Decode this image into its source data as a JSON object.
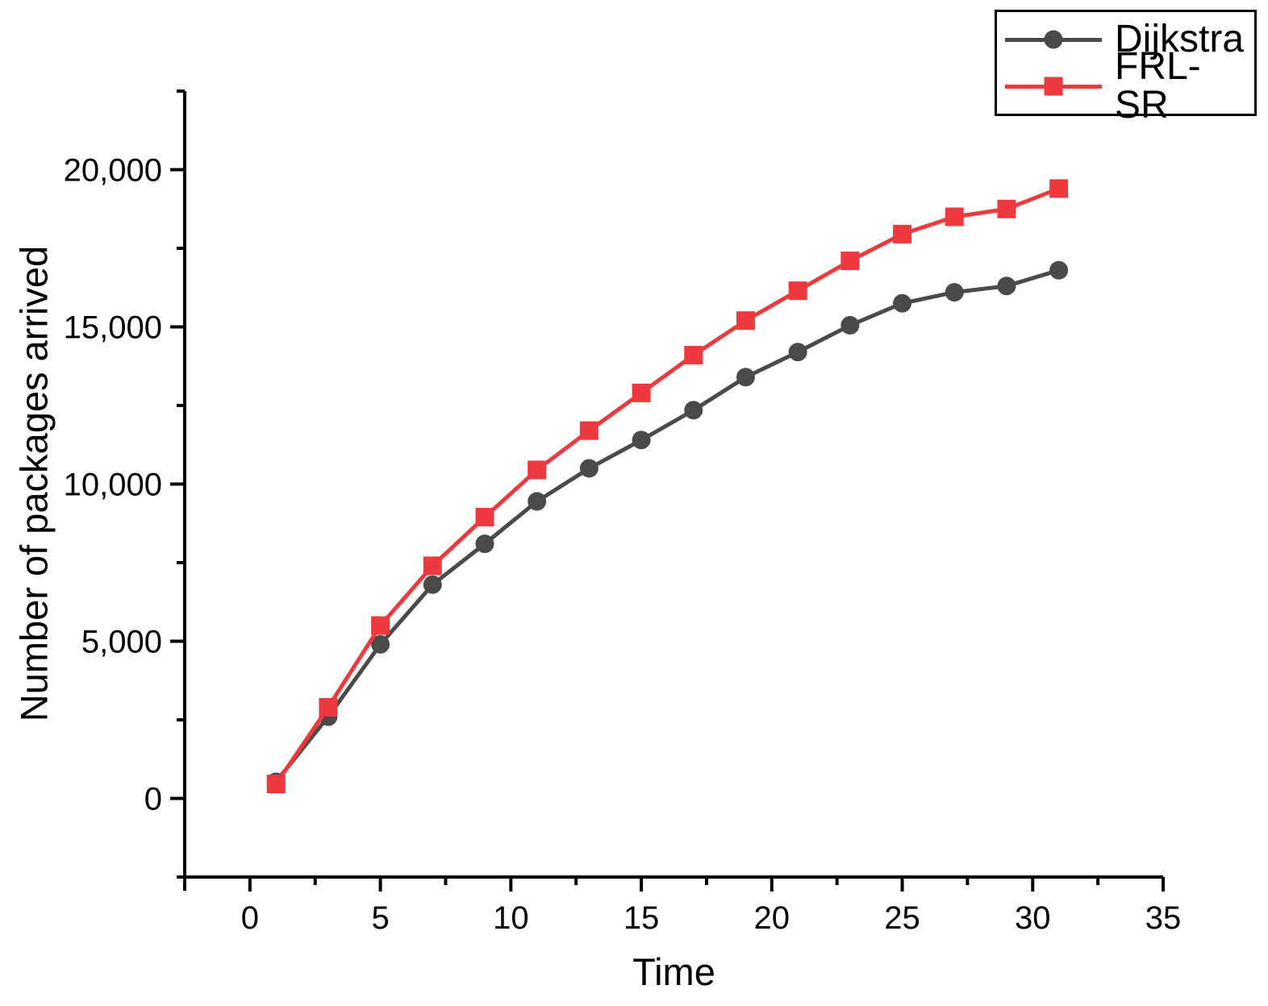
{
  "chart_data": {
    "type": "line",
    "title": "",
    "xlabel": "Time",
    "ylabel": "Number of packages arrived",
    "x": [
      1,
      3,
      5,
      7,
      9,
      11,
      13,
      15,
      17,
      19,
      21,
      23,
      25,
      27,
      29,
      31
    ],
    "series": [
      {
        "name": "Dijkstra",
        "color": "#4a4a4a",
        "marker": "circle",
        "values": [
          530,
          2600,
          4900,
          6800,
          8100,
          9450,
          10500,
          11400,
          12350,
          13400,
          14200,
          15050,
          15750,
          16100,
          16300,
          16800
        ]
      },
      {
        "name": "FRL-SR",
        "color": "#ee3a3e",
        "marker": "square",
        "values": [
          460,
          2900,
          5500,
          7400,
          8950,
          10450,
          11700,
          12900,
          14100,
          15200,
          16150,
          17100,
          17950,
          18500,
          18750,
          19400
        ]
      }
    ],
    "xlim": [
      -2.5,
      35
    ],
    "ylim": [
      -2500,
      22500
    ],
    "x_ticks": [
      0,
      5,
      10,
      15,
      20,
      25,
      30,
      35
    ],
    "x_tick_labels": [
      "0",
      "5",
      "10",
      "15",
      "20",
      "25",
      "30",
      "35"
    ],
    "x_minor_ticks": [
      2.5,
      7.5,
      12.5,
      17.5,
      22.5,
      27.5,
      32.5
    ],
    "y_ticks": [
      0,
      5000,
      10000,
      15000,
      20000
    ],
    "y_tick_labels": [
      "0",
      "5,000",
      "10,000",
      "15,000",
      "20,000"
    ],
    "y_minor_ticks": [
      -2500,
      2500,
      7500,
      12500,
      17500,
      22500
    ],
    "grid": false,
    "legend_position": "top-right",
    "axis_color": "#000000"
  }
}
